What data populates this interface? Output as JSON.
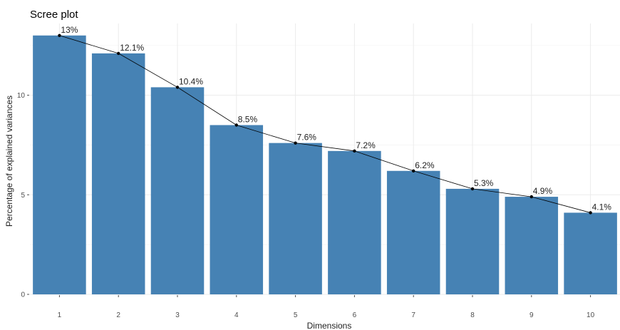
{
  "chart_data": {
    "type": "bar",
    "title": "Scree plot",
    "xlabel": "Dimensions",
    "ylabel": "Percentage of explained variances",
    "categories": [
      "1",
      "2",
      "3",
      "4",
      "5",
      "6",
      "7",
      "8",
      "9",
      "10"
    ],
    "values": [
      13.0,
      12.1,
      10.4,
      8.5,
      7.6,
      7.2,
      6.2,
      5.3,
      4.9,
      4.1
    ],
    "data_labels": [
      "13%",
      "12.1%",
      "10.4%",
      "8.5%",
      "7.6%",
      "7.2%",
      "6.2%",
      "5.3%",
      "4.9%",
      "4.1%"
    ],
    "y_ticks": [
      0,
      5,
      10
    ],
    "ylim": [
      0,
      13.6
    ],
    "line_overlay": true,
    "grid": true,
    "colors": {
      "bar": "#4682B4",
      "line": "#000000",
      "point": "#000000"
    }
  }
}
